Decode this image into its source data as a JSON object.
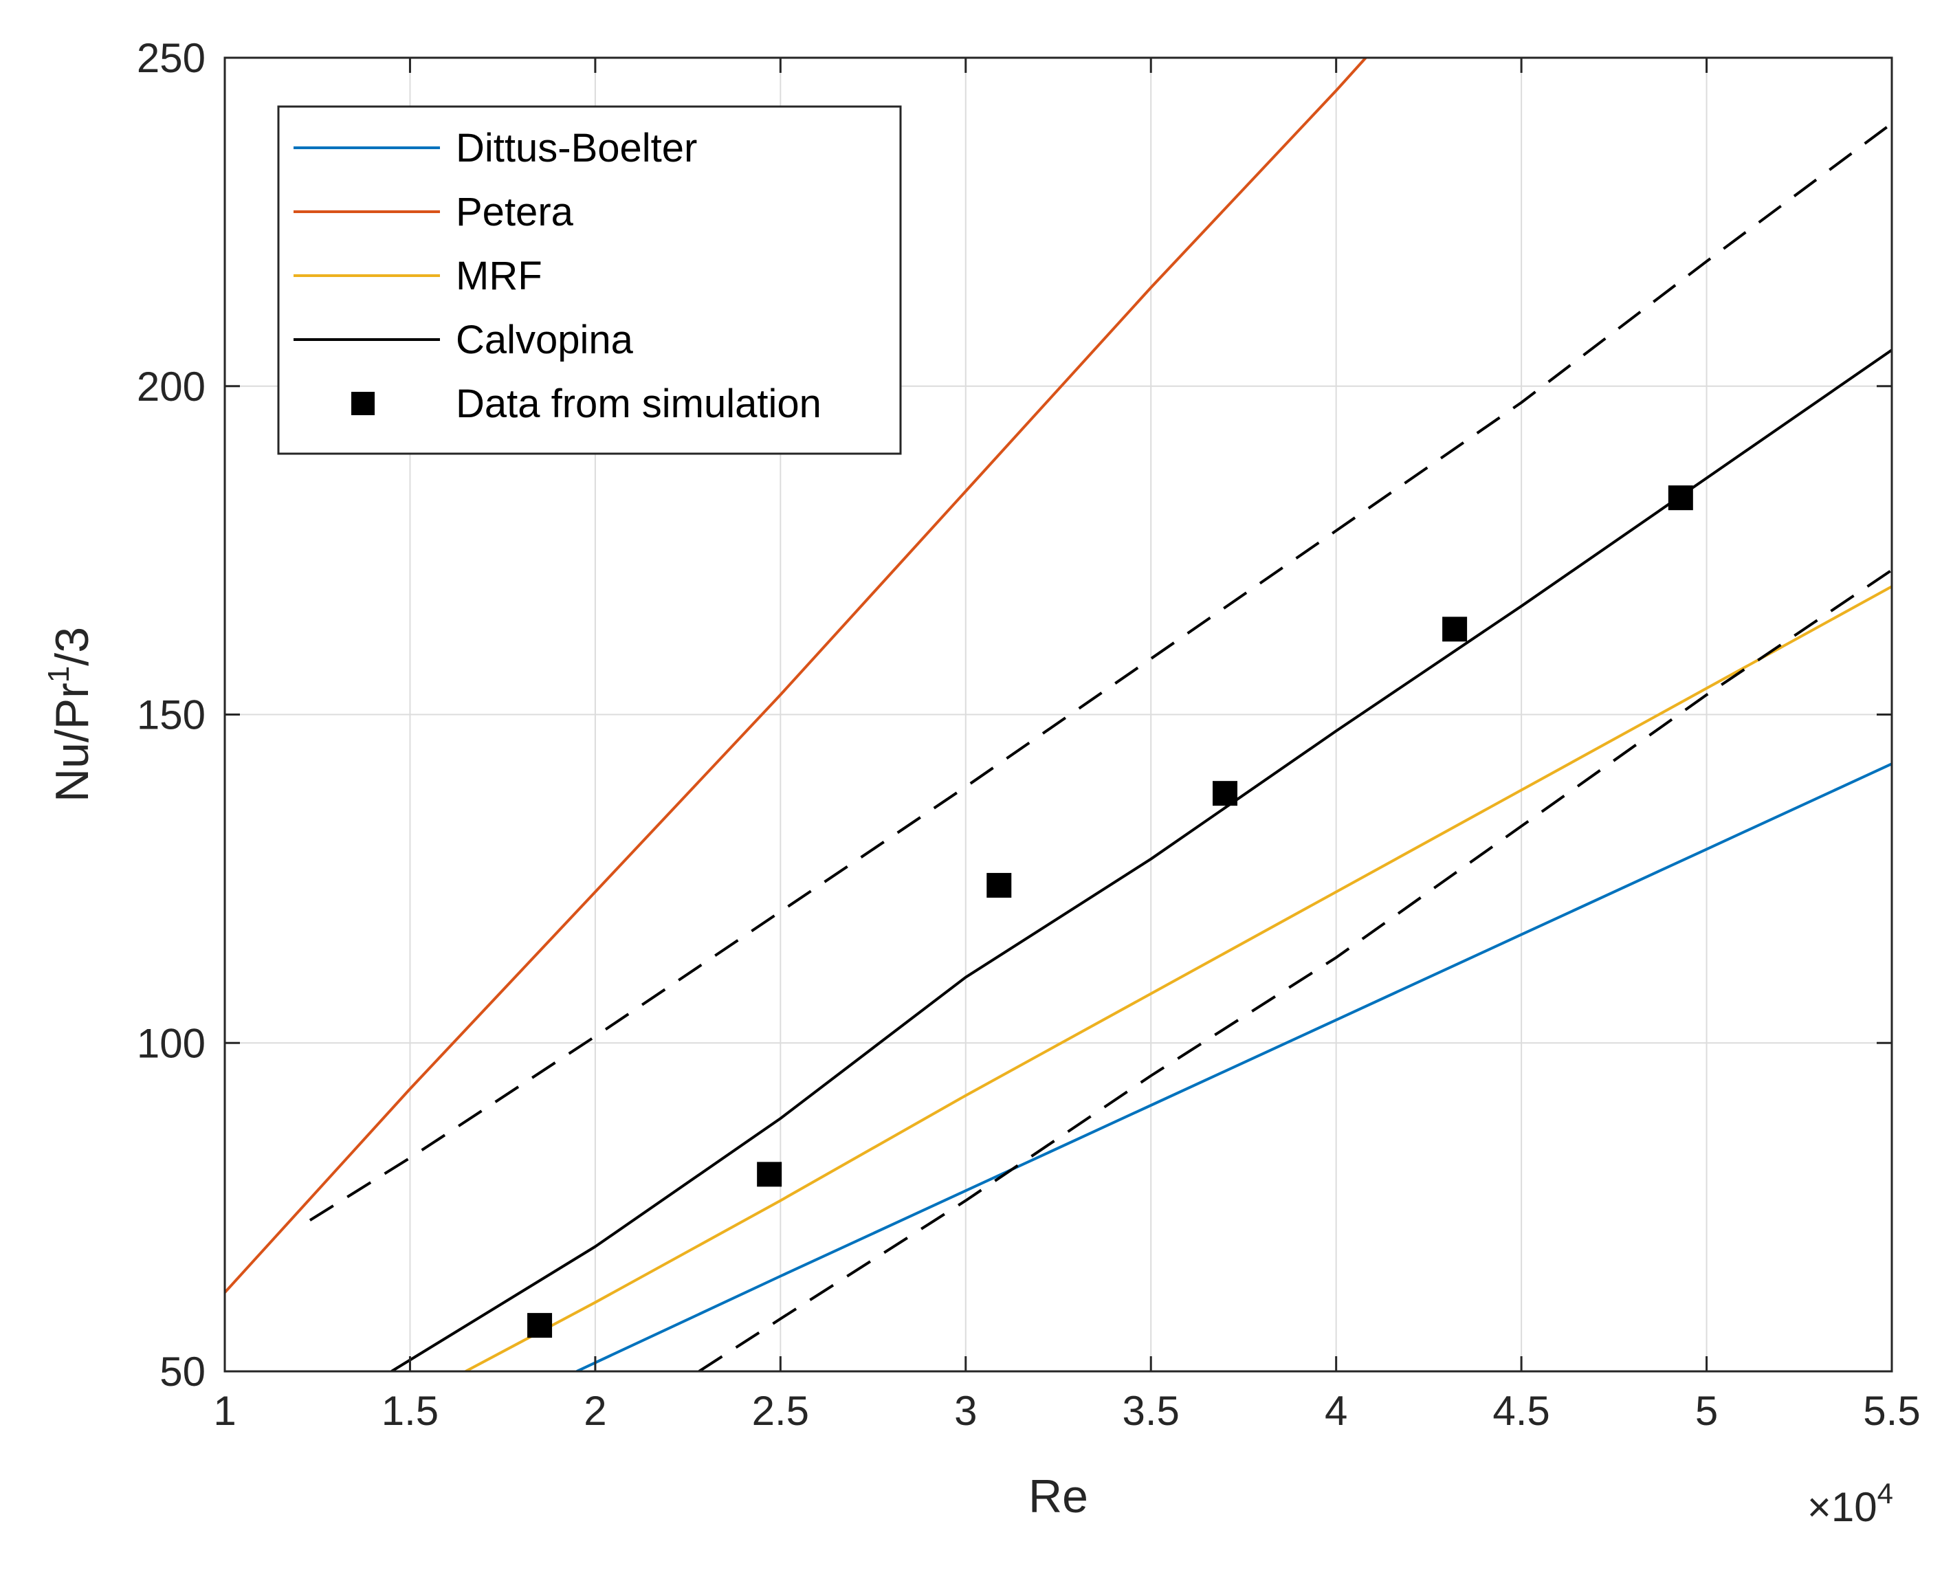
{
  "chart_data": {
    "type": "line",
    "title": "",
    "xlabel": "Re",
    "ylabel_base": "Nu/Pr",
    "ylabel_sup": "1",
    "ylabel_tail": "/3",
    "x_multiplier": {
      "base": "×10",
      "exp": "4"
    },
    "xlim": [
      1,
      5.5
    ],
    "ylim": [
      50,
      250
    ],
    "xticks": [
      1,
      1.5,
      2,
      2.5,
      3,
      3.5,
      4,
      4.5,
      5,
      5.5
    ],
    "xtick_labels": [
      "1",
      "1.5",
      "2",
      "2.5",
      "3",
      "3.5",
      "4",
      "4.5",
      "5",
      "5.5"
    ],
    "yticks": [
      50,
      100,
      150,
      200,
      250
    ],
    "ytick_labels": [
      "50",
      "100",
      "150",
      "200",
      "250"
    ],
    "grid": true,
    "legend_position": "top-left",
    "series": [
      {
        "name": "Dittus-Boelter",
        "color": "#0072BD",
        "style": "solid",
        "x": [
          1.95,
          2.5,
          3,
          3.5,
          4,
          4.5,
          5,
          5.5
        ],
        "y": [
          50,
          64.5,
          77.5,
          90.5,
          103.5,
          116.5,
          129.5,
          142.5
        ]
      },
      {
        "name": "Petera",
        "color": "#D95319",
        "style": "solid",
        "x": [
          1,
          1.5,
          2,
          2.5,
          3,
          3.5,
          4,
          4.08
        ],
        "y": [
          62,
          93,
          123,
          153,
          184,
          215,
          245,
          250
        ]
      },
      {
        "name": "MRF",
        "color": "#EDB120",
        "style": "solid",
        "x": [
          1.65,
          2,
          2.5,
          3,
          3.5,
          4,
          4.5,
          5,
          5.5
        ],
        "y": [
          50,
          60.5,
          76,
          92,
          107.5,
          123,
          138.5,
          154,
          169.5
        ]
      },
      {
        "name": "Calvopina",
        "color": "#000000",
        "style": "solid",
        "x": [
          1.45,
          2,
          2.5,
          3,
          3.5,
          4,
          4.5,
          5,
          5.5
        ],
        "y": [
          50,
          69,
          88.5,
          110,
          128,
          147.5,
          166.5,
          186,
          205.5
        ]
      },
      {
        "name": "",
        "color": "#000000",
        "style": "dashed",
        "x": [
          1.23,
          1.5,
          2,
          2.5,
          3,
          3.5,
          4,
          4.5,
          5,
          5.5
        ],
        "y": [
          73,
          82.5,
          101,
          120,
          139,
          158.5,
          178,
          197.5,
          219,
          240
        ]
      },
      {
        "name": "",
        "color": "#000000",
        "style": "dashed",
        "x": [
          2.28,
          2.5,
          3,
          3.5,
          4,
          4.5,
          5,
          5.5
        ],
        "y": [
          50,
          58,
          76,
          95,
          113,
          133,
          153,
          172
        ]
      },
      {
        "name": "Data from simulation",
        "color": "#000000",
        "style": "markers",
        "x": [
          1.85,
          2.47,
          3.09,
          3.7,
          4.32,
          4.93
        ],
        "y": [
          57,
          80,
          124,
          138,
          163,
          183
        ]
      }
    ]
  }
}
